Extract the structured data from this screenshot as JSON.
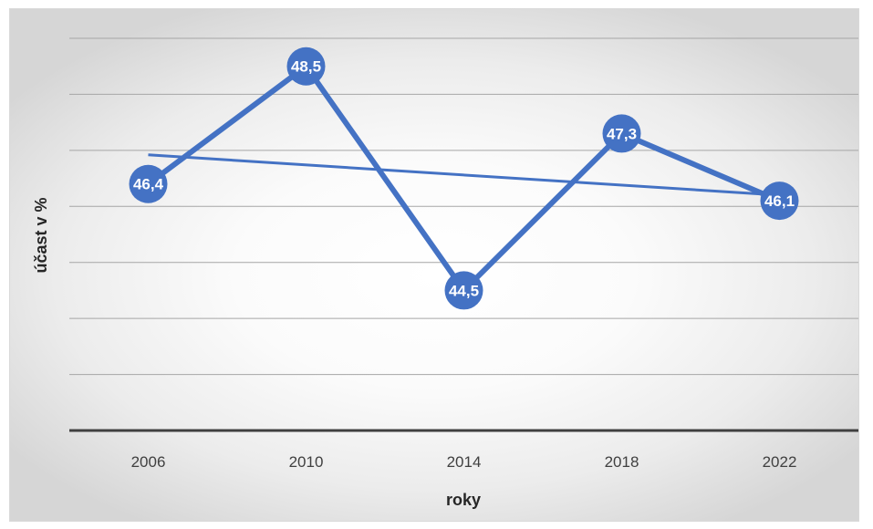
{
  "chart_data": {
    "type": "line",
    "title": "",
    "xlabel": "roky",
    "ylabel": "účast v %",
    "categories": [
      "2006",
      "2010",
      "2014",
      "2018",
      "2022"
    ],
    "series": [
      {
        "values": [
          46.4,
          48.5,
          44.5,
          47.3,
          46.1
        ],
        "labels": [
          "46,4",
          "48,5",
          "44,5",
          "47,3",
          "46,1"
        ]
      }
    ],
    "trendline": {
      "type": "linear"
    },
    "ylim": [
      42.0,
      49.0
    ],
    "ygrid_step": 1.0,
    "grid": true,
    "show_y_tick_labels": false,
    "legend": "none",
    "colors": {
      "series": "#4472c4",
      "trendline": "#4472c4",
      "grid": "#a6a6a6",
      "axis": "#404040",
      "label": "#ffffff"
    }
  }
}
